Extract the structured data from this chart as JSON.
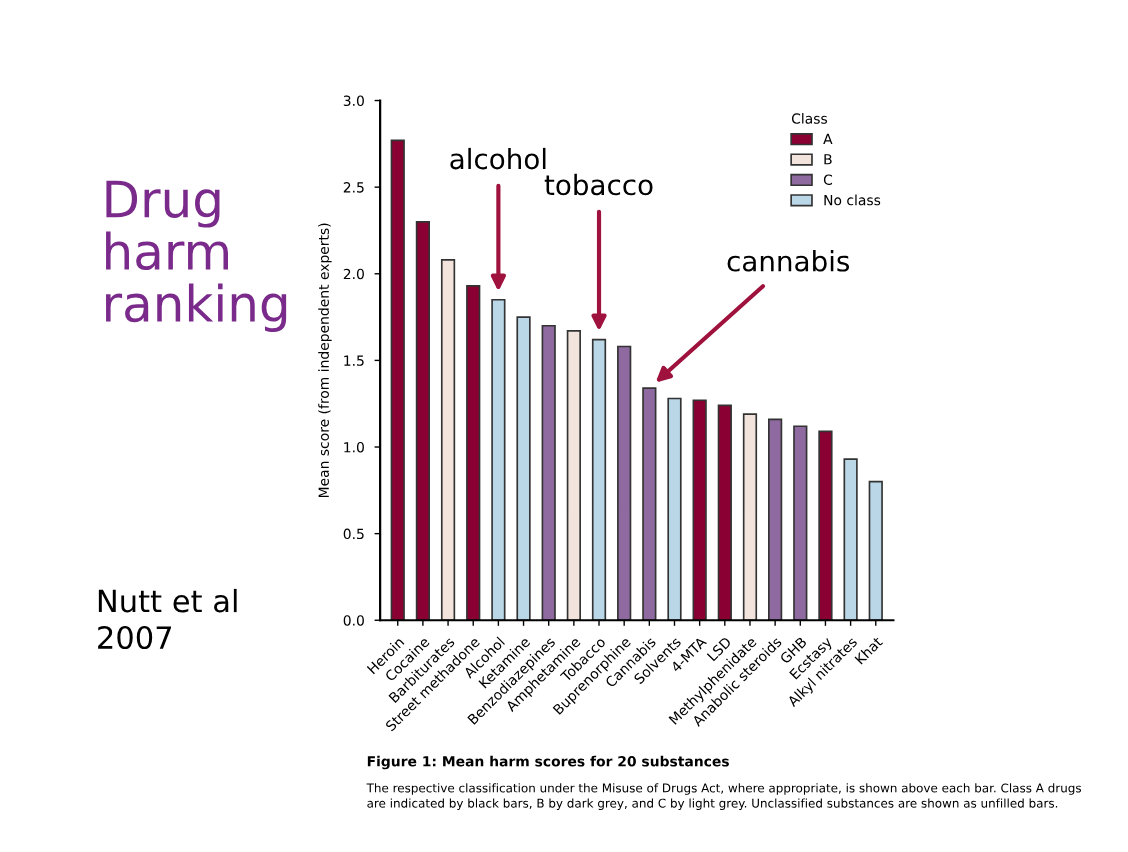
{
  "chart_data": {
    "type": "bar",
    "title": "Drug\nharm\nranking",
    "ylabel": "Mean score (from independent experts)",
    "legend_title": "Class",
    "categories": [
      "Heroin",
      "Cocaine",
      "Barbiturates",
      "Street methadone",
      "Alcohol",
      "Ketamine",
      "Benzodiazepines",
      "Amphetamine",
      "Tobacco",
      "Buprenorphine",
      "Cannabis",
      "Solvents",
      "4-MTA",
      "LSD",
      "Methylphenidate",
      "Anabolic steroids",
      "GHB",
      "Ecstasy",
      "Alkyl nitrates",
      "Khat"
    ],
    "series": [
      {
        "name": "A",
        "color": "#8b0033",
        "values": [
          2.77,
          2.3,
          null,
          1.93,
          null,
          null,
          null,
          null,
          null,
          null,
          null,
          null,
          1.27,
          1.24,
          null,
          null,
          null,
          1.09,
          null,
          null
        ]
      },
      {
        "name": "B",
        "color": "#f2e4dc",
        "values": [
          null,
          null,
          2.08,
          null,
          null,
          null,
          null,
          1.67,
          null,
          null,
          null,
          null,
          null,
          null,
          1.19,
          null,
          null,
          null,
          null,
          null
        ]
      },
      {
        "name": "C",
        "color": "#8e6aa0",
        "values": [
          null,
          null,
          null,
          null,
          null,
          null,
          1.7,
          null,
          null,
          1.58,
          1.34,
          null,
          null,
          null,
          null,
          1.16,
          1.12,
          null,
          null,
          null
        ]
      },
      {
        "name": "No class",
        "color": "#b9d7e6",
        "values": [
          null,
          null,
          null,
          null,
          1.85,
          1.75,
          null,
          null,
          1.62,
          null,
          null,
          1.28,
          null,
          null,
          null,
          null,
          null,
          null,
          0.93,
          0.8
        ]
      }
    ],
    "ylim": [
      0,
      3.0
    ],
    "yticks": [
      {
        "value": 0,
        "label": "0.0"
      },
      {
        "value": 0.5,
        "label": "0.5"
      },
      {
        "value": 1.0,
        "label": "1.0"
      },
      {
        "value": 1.5,
        "label": "1.5"
      },
      {
        "value": 2.0,
        "label": "2.0"
      },
      {
        "value": 2.5,
        "label": "2.5"
      },
      {
        "value": 3.0,
        "label": "3.0"
      }
    ],
    "grid": false,
    "legend": "top right",
    "annotations": [
      {
        "text": "alcohol",
        "x": "Alcohol",
        "y": 1.85
      },
      {
        "text": "tobacco",
        "x": "Tobacco",
        "y": 1.62
      },
      {
        "text": "cannabis",
        "x": "Cannabis",
        "y": 1.34
      },
      "Nutt et al\n2007",
      "Figure 1: Mean harm scores for 20 substances",
      "The respective classification under the Misuse of Drugs Act, where appropriate, is shown above each bar. Class A drugs\nare indicated by black bars, B by dark grey, and C by light grey. Unclassified substances are shown as unfilled bars."
    ]
  }
}
